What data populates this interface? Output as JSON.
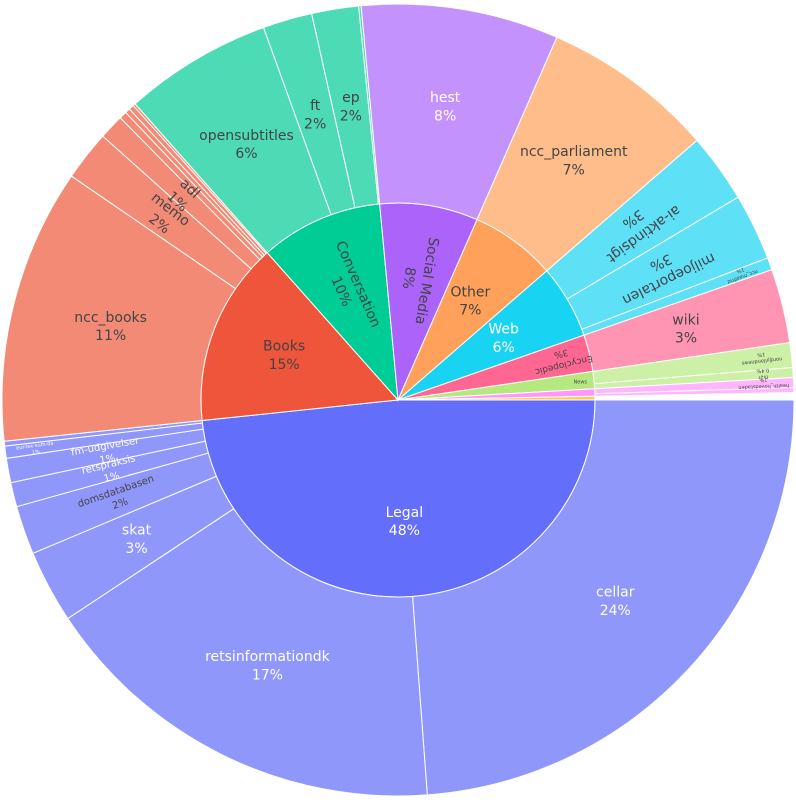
{
  "chart_data": {
    "type": "sunburst",
    "title": "",
    "inner": [
      {
        "name": "Legal",
        "value": 48,
        "pct": "48%",
        "color": "#636efa",
        "text_color": "#ffffff"
      },
      {
        "name": "Books",
        "value": 15,
        "pct": "15%",
        "color": "#ef553b",
        "text_color": "#444444"
      },
      {
        "name": "Conversation",
        "value": 10,
        "pct": "10%",
        "color": "#00cc96",
        "text_color": "#444444",
        "rotated": true
      },
      {
        "name": "Social Media",
        "value": 8,
        "pct": "8%",
        "color": "#ab63fa",
        "text_color": "#444444",
        "rotated": true
      },
      {
        "name": "Other",
        "value": 7,
        "pct": "7%",
        "color": "#ffa15a",
        "text_color": "#444444"
      },
      {
        "name": "Web",
        "value": 6,
        "pct": "6%",
        "color": "#19d3f3",
        "text_color": "#ffffff"
      },
      {
        "name": "Encyclopedic",
        "value": 3,
        "pct": "3%",
        "color": "#ff6692",
        "text_color": "#444444",
        "small": true
      },
      {
        "name": "News",
        "value": 1.4,
        "pct": "",
        "color": "#b6e880",
        "text_color": "#444444",
        "tiny": true
      },
      {
        "name": "",
        "value": 0.6,
        "pct": "",
        "color": "#ff97ff",
        "text_color": "#444444"
      },
      {
        "name": "",
        "value": 0.3,
        "pct": "",
        "color": "#fecb52",
        "text_color": "#444444"
      }
    ],
    "outer": [
      {
        "parent": "Legal",
        "name": "cellar",
        "value": 24,
        "pct": "24%",
        "text_color": "#ffffff"
      },
      {
        "parent": "Legal",
        "name": "retsinformationdk",
        "value": 17,
        "pct": "17%",
        "text_color": "#ffffff"
      },
      {
        "parent": "Legal",
        "name": "skat",
        "value": 3,
        "pct": "3%",
        "text_color": "#ffffff"
      },
      {
        "parent": "Legal",
        "name": "domsdatabasen",
        "value": 2,
        "pct": "2%",
        "text_color": "#444444",
        "small": true
      },
      {
        "parent": "Legal",
        "name": "retspraksis",
        "value": 1,
        "pct": "1%",
        "text_color": "#ffffff",
        "small": true
      },
      {
        "parent": "Legal",
        "name": "fm-udgivelser",
        "value": 1,
        "pct": "1%",
        "text_color": "#ffffff",
        "small": true
      },
      {
        "parent": "Legal",
        "name": "eur-lex-sum-da",
        "value": 0.5,
        "pct": "1%",
        "text_color": "#ffffff",
        "tiny": true
      },
      {
        "parent": "Legal",
        "name": "",
        "value": 0.2,
        "pct": "",
        "text_color": "#ffffff"
      },
      {
        "parent": "Books",
        "name": "ncc_books",
        "value": 11,
        "pct": "11%",
        "text_color": "#444444"
      },
      {
        "parent": "Books",
        "name": "memo",
        "value": 2,
        "pct": "2%",
        "text_color": "#444444",
        "rotated": true
      },
      {
        "parent": "Books",
        "name": "adl",
        "value": 1,
        "pct": "1%",
        "text_color": "#444444",
        "rotated": true
      },
      {
        "parent": "Books",
        "name": "",
        "value": 0.3,
        "pct": "",
        "text_color": "#444444"
      },
      {
        "parent": "Books",
        "name": "",
        "value": 0.2,
        "pct": "",
        "text_color": "#444444"
      },
      {
        "parent": "Books",
        "name": "",
        "value": 0.2,
        "pct": "",
        "text_color": "#444444"
      },
      {
        "parent": "Books",
        "name": "",
        "value": 0.1,
        "pct": "",
        "text_color": "#444444"
      },
      {
        "parent": "Conversation",
        "name": "opensubtitles",
        "value": 6,
        "pct": "6%",
        "text_color": "#444444"
      },
      {
        "parent": "Conversation",
        "name": "ft",
        "value": 2,
        "pct": "2%",
        "text_color": "#444444"
      },
      {
        "parent": "Conversation",
        "name": "ep",
        "value": 1.9,
        "pct": "2%",
        "text_color": "#444444"
      },
      {
        "parent": "Conversation",
        "name": "",
        "value": 0.1,
        "pct": "",
        "text_color": "#444444"
      },
      {
        "parent": "Social Media",
        "name": "hest",
        "value": 8,
        "pct": "8%",
        "text_color": "#ffffff"
      },
      {
        "parent": "Other",
        "name": "ncc_parliament",
        "value": 7,
        "pct": "7%",
        "text_color": "#444444"
      },
      {
        "parent": "Web",
        "name": "ai-aktindsigt",
        "value": 2.8,
        "pct": "3%",
        "text_color": "#444444",
        "rotated": true
      },
      {
        "parent": "Web",
        "name": "miljoeportalen",
        "value": 2.7,
        "pct": "3%",
        "text_color": "#444444",
        "rotated": true
      },
      {
        "parent": "Web",
        "name": "ncc_maalfrid",
        "value": 0.5,
        "pct": "1%",
        "text_color": "#444444",
        "tiny": true
      },
      {
        "parent": "Encyclopedic",
        "name": "wiki",
        "value": 3,
        "pct": "3%",
        "text_color": "#444444"
      },
      {
        "parent": "News",
        "name": "nordjyllandnews",
        "value": 1,
        "pct": "1%",
        "text_color": "#444444",
        "tiny": true
      },
      {
        "parent": "News",
        "name": "tv2r",
        "value": 0.4,
        "pct": "0.4%",
        "text_color": "#444444",
        "tiny": true
      },
      {
        "parent": "",
        "name": "health_hovedstaden",
        "value": 0.6,
        "pct": "1%",
        "text_color": "#444444",
        "tiny": true
      },
      {
        "parent": "",
        "name": "",
        "value": 0.3,
        "pct": "",
        "text_color": "#444444"
      }
    ],
    "outer_colors": {
      "Legal": "#8f97fb",
      "Books": "#f38a76",
      "Conversation": "#4cdbb5",
      "Social Media": "#c492fc",
      "Other": "#ffbd8b",
      "Web": "#5ee0f7",
      "Encyclopedic": "#ff94b3",
      "News": "#ccf0a5",
      "": "#ffb6ff"
    },
    "start_angle_deg": 90,
    "direction": "clockwise"
  }
}
